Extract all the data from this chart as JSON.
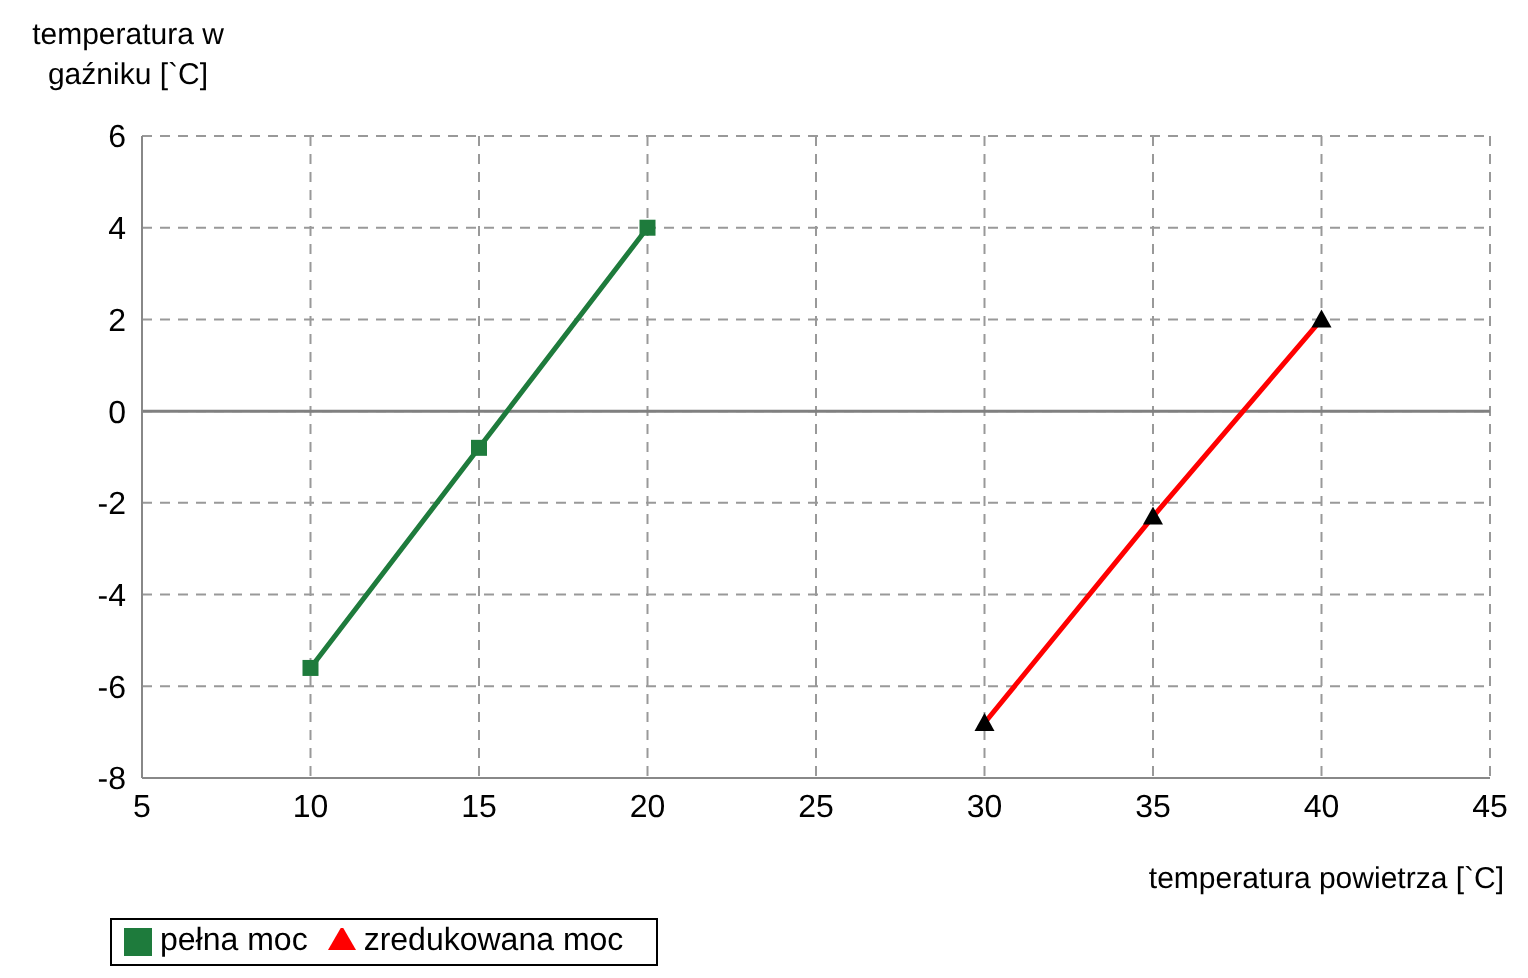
{
  "chart_data": {
    "type": "line",
    "xlabel": "temperatura powietrza [`C]",
    "ylabel": "temperatura w gaźniku [`C]",
    "series": [
      {
        "name": "pełna moc",
        "color": "#1e7b3c",
        "marker": "square",
        "x": [
          10,
          15,
          20
        ],
        "values": [
          -5.6,
          -0.8,
          4.0
        ]
      },
      {
        "name": "zredukowana moc",
        "color": "#ff0000",
        "marker": "triangle",
        "x": [
          30,
          35,
          40
        ],
        "values": [
          -6.8,
          -2.3,
          2.0
        ]
      }
    ],
    "xlim": [
      5,
      45
    ],
    "xticks": [
      5,
      10,
      15,
      20,
      25,
      30,
      35,
      40,
      45
    ],
    "ylim": [
      -8,
      6
    ],
    "yticks": [
      -8,
      -6,
      -4,
      -2,
      0,
      2,
      4,
      6
    ],
    "ref_lines": [
      {
        "axis": "y",
        "value": 0,
        "color": "#808080"
      }
    ],
    "grid": true,
    "legend": "bottom left",
    "line_style": "solid"
  }
}
